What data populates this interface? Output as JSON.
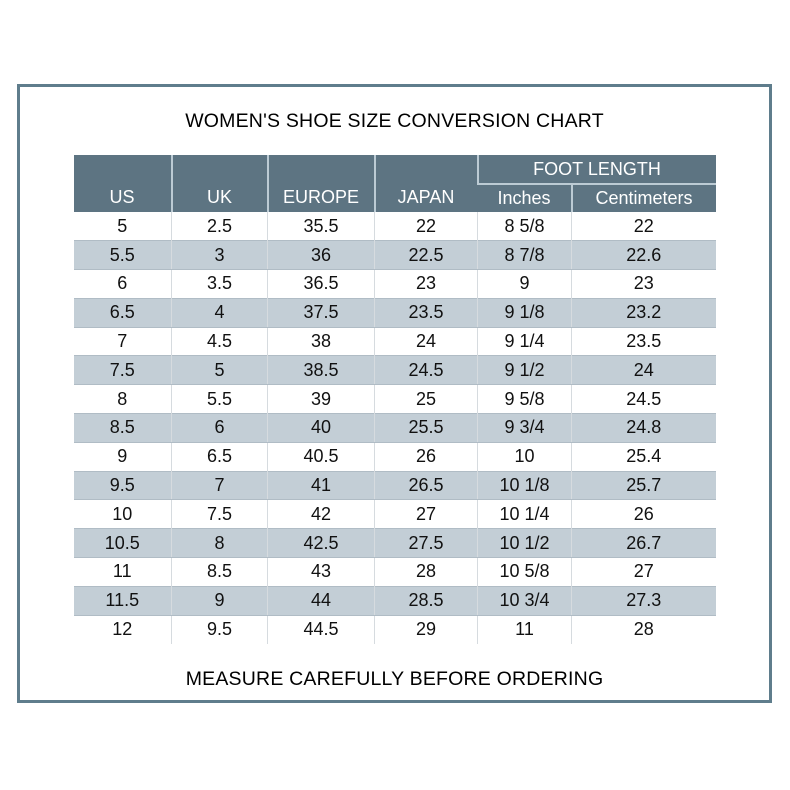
{
  "colors": {
    "header_bg": "#5d7482",
    "header_text": "#ffffff",
    "frame_border": "#5f7d8c",
    "stripe_bg": "#c3ced6",
    "stripe_edge": "#b0bcc5",
    "grid_line": "#d6dbdf",
    "header_grid_line": "#bccbd4",
    "body_text": "#111111"
  },
  "chart_data": {
    "type": "table",
    "title": "WOMEN'S SHOE SIZE CONVERSION CHART",
    "footnote": "MEASURE CAREFULLY BEFORE ORDERING",
    "column_group": {
      "label": "FOOT LENGTH",
      "covers": [
        "Inches",
        "Centimeters"
      ]
    },
    "columns": [
      "US",
      "UK",
      "EUROPE",
      "JAPAN",
      "Inches",
      "Centimeters"
    ],
    "rows": [
      [
        "5",
        "2.5",
        "35.5",
        "22",
        "8 5/8",
        "22"
      ],
      [
        "5.5",
        "3",
        "36",
        "22.5",
        "8 7/8",
        "22.6"
      ],
      [
        "6",
        "3.5",
        "36.5",
        "23",
        "9",
        "23"
      ],
      [
        "6.5",
        "4",
        "37.5",
        "23.5",
        "9 1/8",
        "23.2"
      ],
      [
        "7",
        "4.5",
        "38",
        "24",
        "9 1/4",
        "23.5"
      ],
      [
        "7.5",
        "5",
        "38.5",
        "24.5",
        "9 1/2",
        "24"
      ],
      [
        "8",
        "5.5",
        "39",
        "25",
        "9 5/8",
        "24.5"
      ],
      [
        "8.5",
        "6",
        "40",
        "25.5",
        "9 3/4",
        "24.8"
      ],
      [
        "9",
        "6.5",
        "40.5",
        "26",
        "10",
        "25.4"
      ],
      [
        "9.5",
        "7",
        "41",
        "26.5",
        "10 1/8",
        "25.7"
      ],
      [
        "10",
        "7.5",
        "42",
        "27",
        "10 1/4",
        "26"
      ],
      [
        "10.5",
        "8",
        "42.5",
        "27.5",
        "10 1/2",
        "26.7"
      ],
      [
        "11",
        "8.5",
        "43",
        "28",
        "10 5/8",
        "27"
      ],
      [
        "11.5",
        "9",
        "44",
        "28.5",
        "10 3/4",
        "27.3"
      ],
      [
        "12",
        "9.5",
        "44.5",
        "29",
        "11",
        "28"
      ]
    ]
  }
}
